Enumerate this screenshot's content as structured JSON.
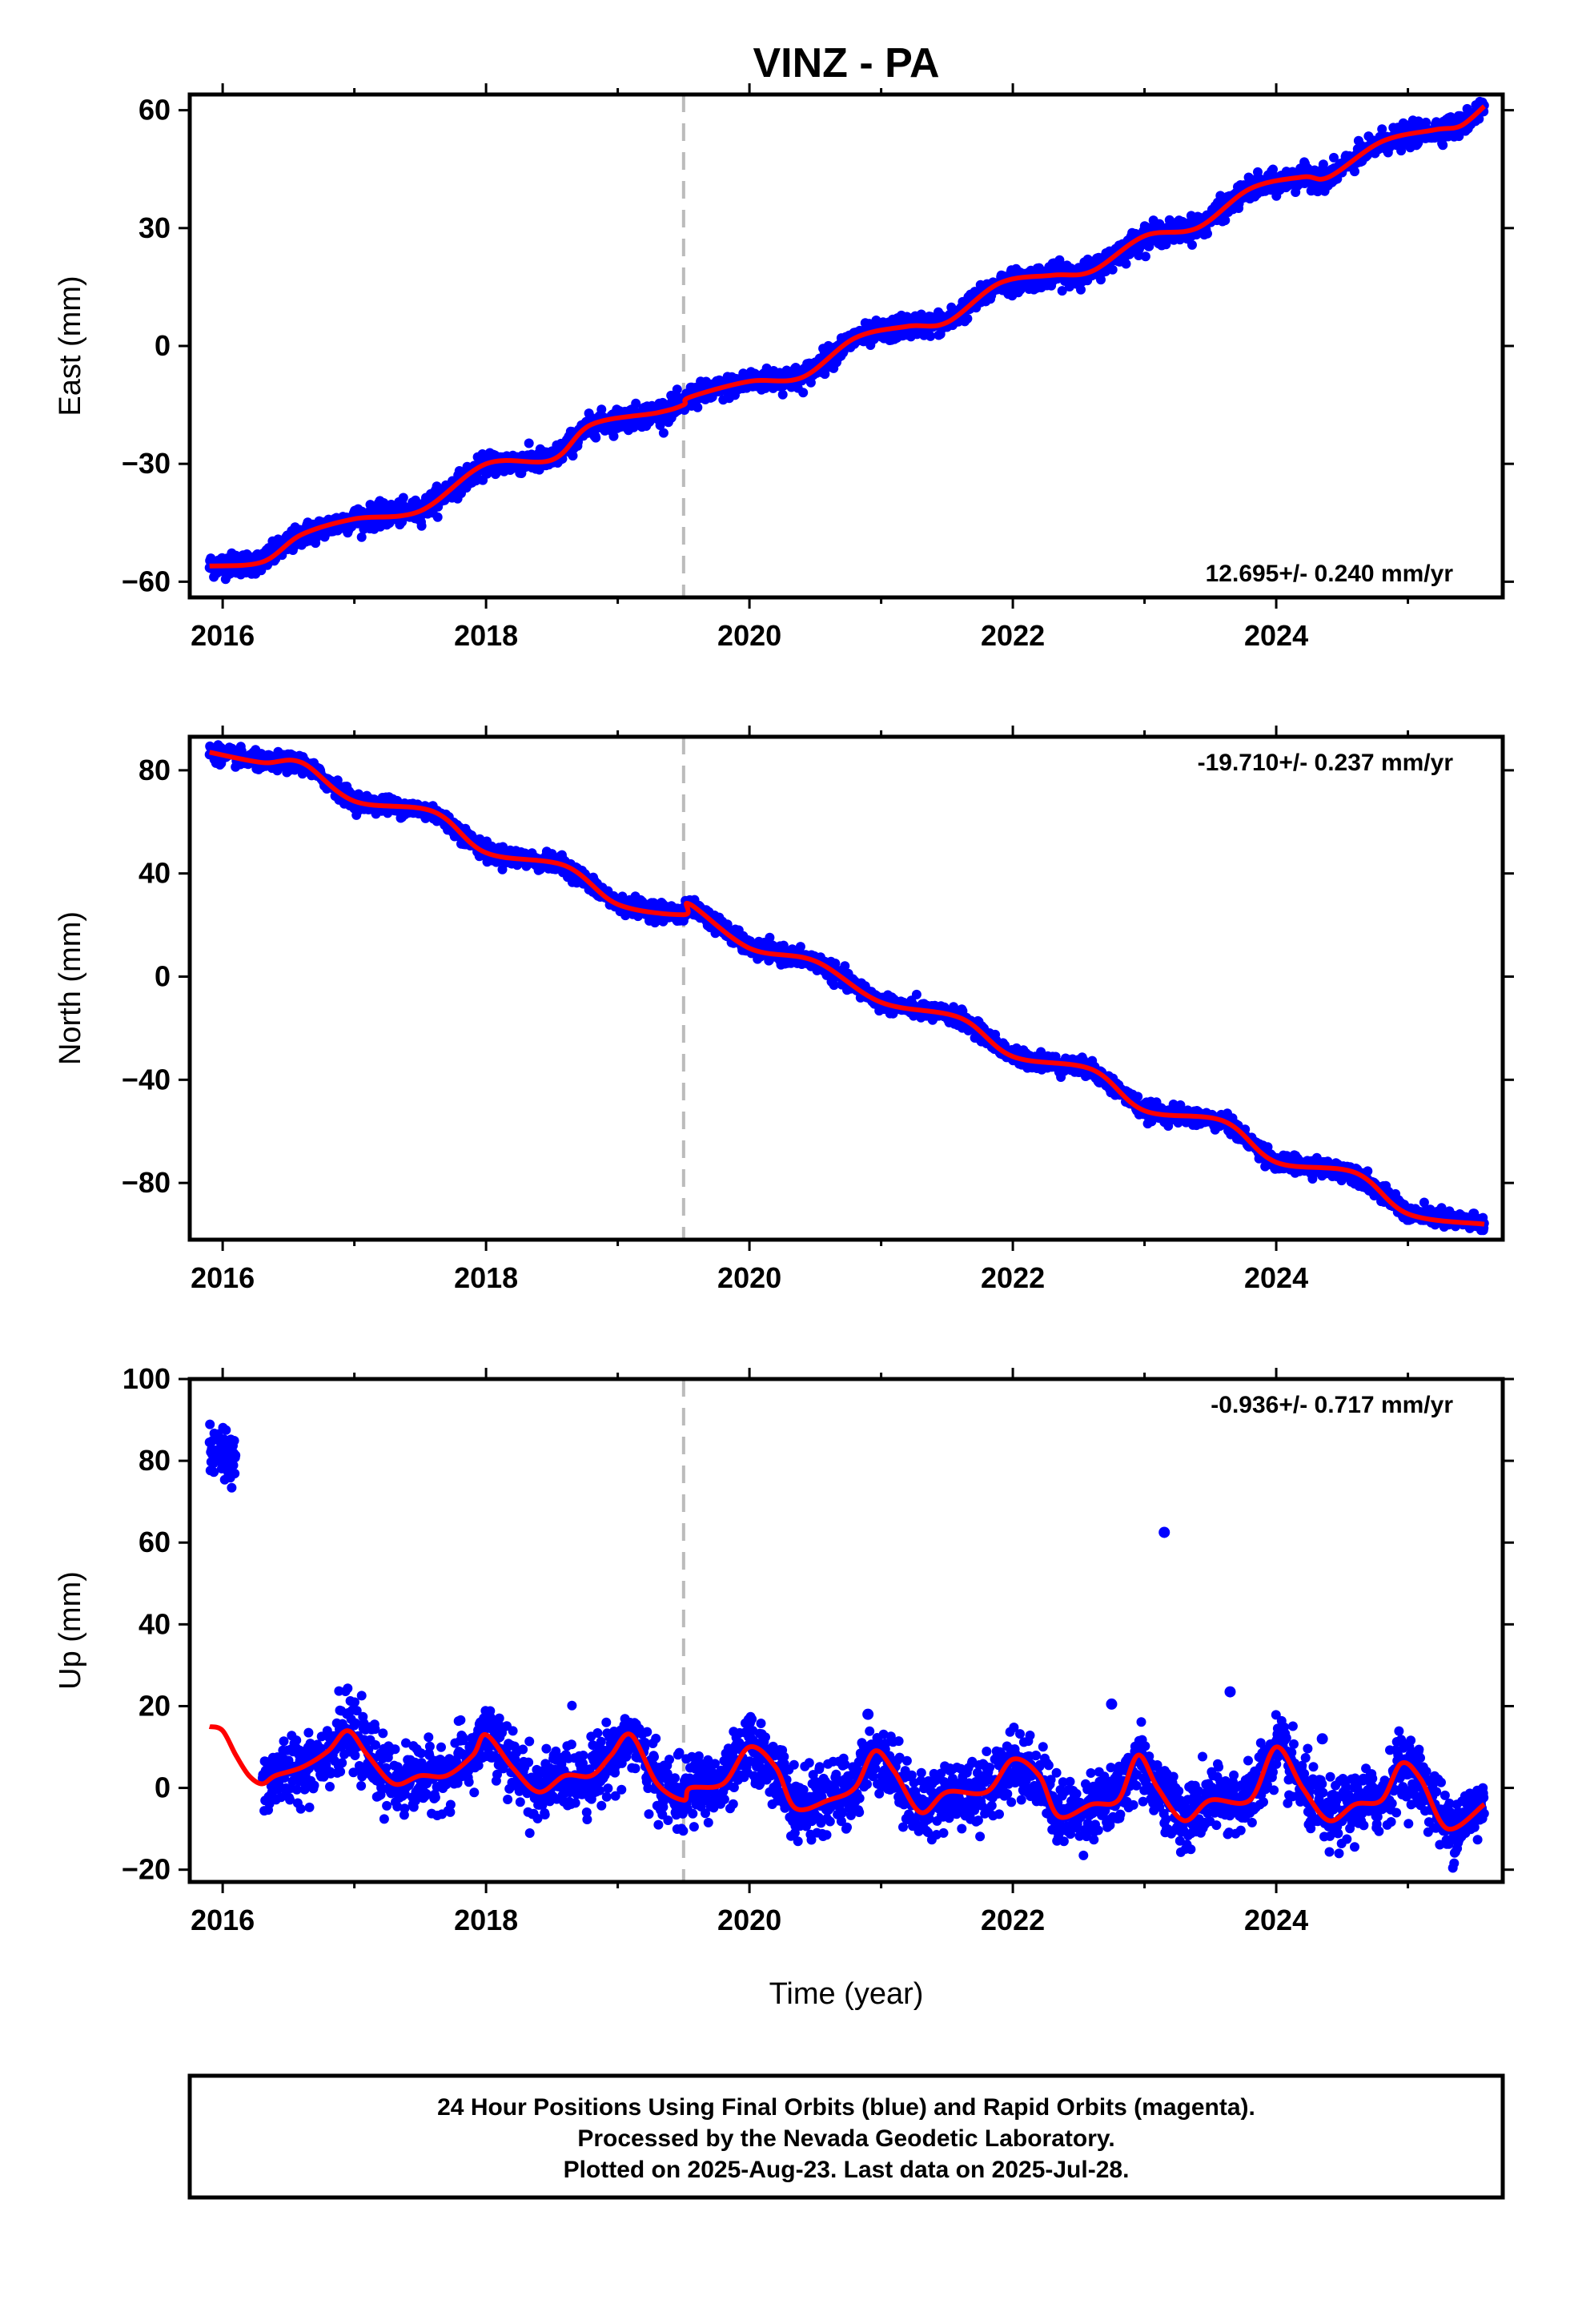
{
  "title": "VINZ - PA",
  "xlabel": "Time (year)",
  "footer": {
    "lines": [
      "24 Hour Positions Using Final Orbits (blue) and Rapid Orbits (magenta).",
      "Processed by the Nevada Geodetic Laboratory.",
      "Plotted on 2025-Aug-23. Last data on 2025-Jul-28."
    ]
  },
  "colors": {
    "points": "#0000ff",
    "model": "#ff0000",
    "event_line": "#bbbbbb",
    "frame": "#000000"
  },
  "chart_data": [
    {
      "type": "scatter",
      "name": "east",
      "ylabel": "East (mm)",
      "rate_label": "12.695+/- 0.240 mm/yr",
      "rate_position": "bottom-right",
      "xlim": [
        2015.75,
        2025.72
      ],
      "ylim": [
        -64,
        64
      ],
      "xticks": [
        2016,
        2018,
        2020,
        2022,
        2024
      ],
      "xtick_labels": [
        "2016",
        "2018",
        "2020",
        "2022",
        "2024"
      ],
      "yticks": [
        -60,
        -30,
        0,
        30,
        60
      ],
      "ytick_labels": [
        "−60",
        "−30",
        "0",
        "30",
        "60"
      ],
      "event_line_x": 2019.5,
      "model": {
        "x": [
          2015.9,
          2016.3,
          2016.6,
          2017.0,
          2017.5,
          2018.0,
          2018.5,
          2018.8,
          2019.3,
          2019.5,
          2019.55,
          2020.0,
          2020.4,
          2020.8,
          2021.2,
          2021.5,
          2021.9,
          2022.3,
          2022.6,
          2023.0,
          2023.4,
          2023.8,
          2024.2,
          2024.4,
          2024.8,
          2025.2,
          2025.4,
          2025.58
        ],
        "y": [
          -56,
          -55,
          -48,
          -44,
          -42,
          -30,
          -29,
          -20,
          -17,
          -15,
          -13,
          -9,
          -8,
          2,
          5,
          6,
          16,
          18,
          19,
          28,
          30,
          40,
          43,
          43,
          52,
          55,
          56,
          61
        ]
      },
      "scatter_noise": 1.4
    },
    {
      "type": "scatter",
      "name": "north",
      "ylabel": "North (mm)",
      "rate_label": "-19.710+/- 0.237 mm/yr",
      "rate_position": "top-right",
      "xlim": [
        2015.75,
        2025.72
      ],
      "ylim": [
        -102,
        93
      ],
      "xticks": [
        2016,
        2018,
        2020,
        2022,
        2024
      ],
      "xtick_labels": [
        "2016",
        "2018",
        "2020",
        "2022",
        "2024"
      ],
      "yticks": [
        -80,
        -40,
        0,
        40,
        80
      ],
      "ytick_labels": [
        "−80",
        "−40",
        "0",
        "40",
        "80"
      ],
      "event_line_x": 2019.5,
      "model": {
        "x": [
          2015.9,
          2016.3,
          2016.6,
          2017.0,
          2017.6,
          2018.0,
          2018.6,
          2019.0,
          2019.5,
          2019.55,
          2020.0,
          2020.5,
          2021.0,
          2021.6,
          2022.0,
          2022.6,
          2023.0,
          2023.6,
          2024.0,
          2024.6,
          2025.0,
          2025.58
        ],
        "y": [
          87,
          83,
          83,
          68,
          64,
          48,
          43,
          28,
          24,
          28,
          11,
          6,
          -10,
          -16,
          -31,
          -36,
          -52,
          -56,
          -72,
          -76,
          -92,
          -96
        ]
      },
      "scatter_noise": 1.6
    },
    {
      "type": "scatter",
      "name": "up",
      "ylabel": "Up (mm)",
      "rate_label": "-0.936+/- 0.717 mm/yr",
      "rate_position": "top-right",
      "xlim": [
        2015.75,
        2025.72
      ],
      "ylim": [
        -23,
        100
      ],
      "xticks": [
        2016,
        2018,
        2020,
        2022,
        2024
      ],
      "xtick_labels": [
        "2016",
        "2018",
        "2020",
        "2022",
        "2024"
      ],
      "yticks": [
        -20,
        0,
        20,
        40,
        60,
        80,
        100
      ],
      "ytick_labels": [
        "−20",
        "0",
        "20",
        "40",
        "60",
        "80",
        "100"
      ],
      "event_line_x": 2019.5,
      "model": {
        "x": [
          2015.9,
          2016.0,
          2016.1,
          2016.2,
          2016.3,
          2016.4,
          2016.6,
          2016.8,
          2016.95,
          2017.1,
          2017.3,
          2017.5,
          2017.7,
          2017.9,
          2018.0,
          2018.2,
          2018.4,
          2018.6,
          2018.8,
          2018.95,
          2019.1,
          2019.3,
          2019.5,
          2019.55,
          2019.8,
          2020.0,
          2020.2,
          2020.35,
          2020.6,
          2020.8,
          2020.95,
          2021.1,
          2021.3,
          2021.5,
          2021.8,
          2022.0,
          2022.2,
          2022.35,
          2022.6,
          2022.8,
          2022.95,
          2023.1,
          2023.3,
          2023.5,
          2023.8,
          2024.0,
          2024.2,
          2024.4,
          2024.6,
          2024.8,
          2024.95,
          2025.1,
          2025.3,
          2025.58
        ],
        "y": [
          15,
          14,
          8,
          3,
          1,
          3,
          5,
          9,
          14,
          8,
          1,
          3,
          3,
          8,
          13,
          5,
          -1,
          3,
          3,
          8,
          13,
          1,
          -3,
          0,
          1,
          10,
          5,
          -5,
          -3,
          0,
          9,
          4,
          -6,
          -1,
          -1,
          7,
          3,
          -7,
          -4,
          -3,
          8,
          0,
          -8,
          -3,
          -3,
          10,
          0,
          -8,
          -4,
          -3,
          6,
          2,
          -10,
          -4
        ]
      },
      "scatter_noise": 4.0,
      "early_cluster": {
        "x_range": [
          2015.9,
          2016.1
        ],
        "y_center": 84,
        "y_spread": 6
      },
      "outliers": [
        {
          "x": 2023.15,
          "y": 62.5
        },
        {
          "x": 2023.65,
          "y": 23.5
        },
        {
          "x": 2024.35,
          "y": 12
        },
        {
          "x": 2020.9,
          "y": 18
        },
        {
          "x": 2022.75,
          "y": 20.5
        }
      ]
    }
  ]
}
